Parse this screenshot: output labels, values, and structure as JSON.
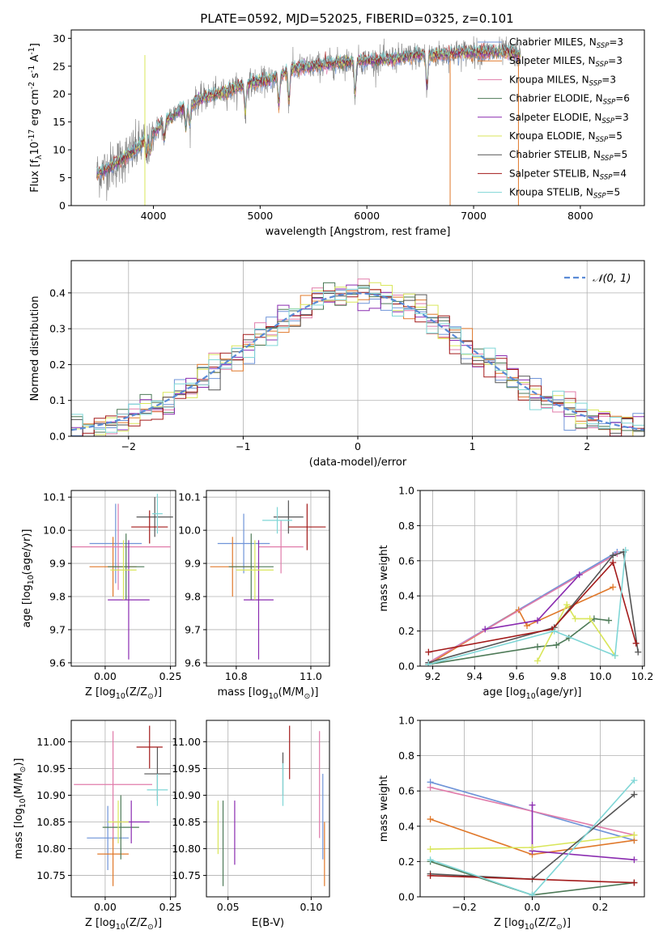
{
  "figure": {
    "title": "PLATE=0592, MJD=52025, FIBERID=0325, z=0.101"
  },
  "colors": {
    "models": [
      "#6f94d8",
      "#e0782a",
      "#e07baa",
      "#4d7a57",
      "#8a2bb0",
      "#d9e65a",
      "#555555",
      "#a31a1a",
      "#7fd6d6"
    ],
    "axes_fg": "#000000",
    "grid": "#b0b0b0",
    "spectrum_data": "#808080",
    "gauss": "#5b8bd6"
  },
  "chart_data": [
    {
      "id": "spectrum",
      "type": "line",
      "xlabel": "wavelength [Angstrom, rest frame]",
      "ylabel": "Flux [f$_\\lambda$10$^{-17}$ erg cm$^{-2}$ s$^{-1}$ A$^{-1}$]",
      "ylabel_parts": [
        "Flux [f",
        "λ",
        "10",
        "−17",
        " erg cm",
        "−2",
        " s",
        "−1",
        " A",
        "−1",
        "]"
      ],
      "xlim": [
        3230,
        8600
      ],
      "ylim": [
        0,
        31.5
      ],
      "xticks": [
        4000,
        5000,
        6000,
        7000,
        8000
      ],
      "yticks": [
        0,
        5,
        10,
        15,
        20,
        25,
        30
      ],
      "continuum": {
        "x": [
          3450,
          3600,
          3800,
          3950,
          4100,
          4300,
          4500,
          4700,
          4900,
          5100,
          5300,
          5500,
          5700,
          5900,
          6100,
          6300,
          6500,
          6700,
          6900,
          7100,
          7300,
          7450
        ],
        "y": [
          5.5,
          7.0,
          9.5,
          12.0,
          15.0,
          18.0,
          19.5,
          20.5,
          22.0,
          22.5,
          24.5,
          25.0,
          25.5,
          26.0,
          26.0,
          26.5,
          27.0,
          27.0,
          27.5,
          27.5,
          27.5,
          27.0
        ]
      },
      "legend": [
        {
          "name": "Chabrier MILES",
          "nssp": "3"
        },
        {
          "name": "Salpeter MILES",
          "nssp": "3"
        },
        {
          "name": "Kroupa MILES",
          "nssp": "3"
        },
        {
          "name": "Chabrier ELODIE",
          "nssp": "6"
        },
        {
          "name": "Salpeter ELODIE",
          "nssp": "3"
        },
        {
          "name": "Kroupa ELODIE",
          "nssp": "5"
        },
        {
          "name": "Chabrier STELIB",
          "nssp": "5"
        },
        {
          "name": "Salpeter STELIB",
          "nssp": "4"
        },
        {
          "name": "Kroupa STELIB",
          "nssp": "5"
        }
      ],
      "legend_nssp_label": "N",
      "legend_nssp_sub": "SSP"
    },
    {
      "id": "residuals",
      "type": "histogram",
      "xlabel": "(data-model)/error",
      "ylabel": "Normed distribution",
      "xlim": [
        -2.5,
        2.5
      ],
      "ylim": [
        0,
        0.49
      ],
      "xticks": [
        -2,
        -1,
        0,
        1,
        2
      ],
      "yticks": [
        0.0,
        0.1,
        0.2,
        0.3,
        0.4
      ],
      "bin_width": 0.1,
      "legend": "𝒩(0, 1)"
    },
    {
      "id": "age-vs-Z",
      "type": "errorbar",
      "xlabel": "Z [log$_{10}$(Z/Z$_\\odot$)]",
      "ylabel": "age  [log$_{10}$(age/yr)]",
      "xlim": [
        -0.13,
        0.27
      ],
      "ylim": [
        9.59,
        10.12
      ],
      "xticks": [
        0.0,
        0.25
      ],
      "yticks": [
        9.6,
        9.7,
        9.8,
        9.9,
        10.0,
        10.1
      ],
      "points": [
        {
          "x": 0.04,
          "y": 9.96,
          "xerr": 0.1,
          "yerr": 0.12
        },
        {
          "x": 0.03,
          "y": 9.89,
          "xerr": 0.09,
          "yerr": 0.09
        },
        {
          "x": 0.05,
          "y": 9.95,
          "xerr": 0.2,
          "yerr": 0.13
        },
        {
          "x": 0.08,
          "y": 9.89,
          "xerr": 0.07,
          "yerr": 0.1
        },
        {
          "x": 0.09,
          "y": 9.79,
          "xerr": 0.08,
          "yerr": 0.18
        },
        {
          "x": 0.07,
          "y": 9.88,
          "xerr": 0.05,
          "yerr": 0.09
        },
        {
          "x": 0.19,
          "y": 10.04,
          "xerr": 0.07,
          "yerr": 0.06
        },
        {
          "x": 0.17,
          "y": 10.01,
          "xerr": 0.07,
          "yerr": 0.05
        },
        {
          "x": 0.2,
          "y": 10.05,
          "xerr": 0.02,
          "yerr": 0.06
        }
      ]
    },
    {
      "id": "age-vs-mass",
      "type": "errorbar",
      "xlabel": "mass [log$_{10}$(M/M$_\\odot$)]",
      "ylabel": "",
      "xlim": [
        10.72,
        11.05
      ],
      "ylim": [
        9.59,
        10.12
      ],
      "xticks": [
        10.8,
        11.0
      ],
      "yticks": [
        9.6,
        9.7,
        9.8,
        9.9,
        10.0,
        10.1
      ],
      "points": [
        {
          "x": 10.82,
          "y": 9.96,
          "xerr": 0.07,
          "yerr": 0.09
        },
        {
          "x": 10.79,
          "y": 9.89,
          "xerr": 0.06,
          "yerr": 0.09
        },
        {
          "x": 10.92,
          "y": 9.95,
          "xerr": 0.06,
          "yerr": 0.08
        },
        {
          "x": 10.84,
          "y": 9.89,
          "xerr": 0.06,
          "yerr": 0.1
        },
        {
          "x": 10.86,
          "y": 9.79,
          "xerr": 0.04,
          "yerr": 0.18
        },
        {
          "x": 10.85,
          "y": 9.88,
          "xerr": 0.05,
          "yerr": 0.09
        },
        {
          "x": 10.94,
          "y": 10.04,
          "xerr": 0.04,
          "yerr": 0.05
        },
        {
          "x": 10.99,
          "y": 10.01,
          "xerr": 0.05,
          "yerr": 0.07
        },
        {
          "x": 10.91,
          "y": 10.03,
          "xerr": 0.04,
          "yerr": 0.04
        }
      ]
    },
    {
      "id": "massweight-vs-age",
      "type": "line",
      "xlabel": "age  [log$_{10}$(age/yr)]",
      "ylabel": "mass weight",
      "xlim": [
        9.14,
        10.21
      ],
      "ylim": [
        0,
        1.0
      ],
      "xticks": [
        9.2,
        9.4,
        9.6,
        9.8,
        10.0,
        10.2
      ],
      "yticks": [
        0.0,
        0.2,
        0.4,
        0.6,
        0.8,
        1.0
      ],
      "series": [
        {
          "x": [
            9.18,
            10.08
          ],
          "y": [
            0.02,
            0.65
          ]
        },
        {
          "x": [
            9.18,
            9.61,
            9.65,
            10.06
          ],
          "y": [
            0.01,
            0.32,
            0.23,
            0.45
          ]
        },
        {
          "x": [
            9.18,
            10.08
          ],
          "y": [
            0.02,
            0.64
          ]
        },
        {
          "x": [
            9.18,
            9.7,
            9.79,
            9.85,
            9.97,
            10.04
          ],
          "y": [
            0.01,
            0.11,
            0.12,
            0.16,
            0.27,
            0.26
          ]
        },
        {
          "x": [
            9.45,
            9.7,
            9.9
          ],
          "y": [
            0.21,
            0.26,
            0.52
          ]
        },
        {
          "x": [
            9.7,
            9.84,
            9.88,
            9.95,
            10.07
          ],
          "y": [
            0.03,
            0.35,
            0.27,
            0.27,
            0.06
          ]
        },
        {
          "x": [
            9.18,
            9.78,
            10.06,
            10.11,
            10.18
          ],
          "y": [
            0.02,
            0.22,
            0.63,
            0.65,
            0.08
          ]
        },
        {
          "x": [
            9.18,
            9.77,
            10.06,
            10.17
          ],
          "y": [
            0.08,
            0.21,
            0.59,
            0.13
          ]
        },
        {
          "x": [
            9.18,
            9.78,
            10.07,
            10.12
          ],
          "y": [
            0.01,
            0.2,
            0.06,
            0.66
          ]
        }
      ]
    },
    {
      "id": "mass-vs-Z",
      "type": "errorbar",
      "xlabel": "Z [log$_{10}$(Z/Z$_\\odot$)]",
      "ylabel": "mass [log$_{10}$(M/M$_\\odot$)]",
      "xlim": [
        -0.13,
        0.27
      ],
      "ylim": [
        10.71,
        11.04
      ],
      "xticks": [
        0.0,
        0.25
      ],
      "yticks": [
        10.75,
        10.8,
        10.85,
        10.9,
        10.95,
        11.0
      ],
      "points": [
        {
          "x": 0.01,
          "y": 10.82,
          "xerr": 0.08,
          "yerr": 0.06
        },
        {
          "x": 0.03,
          "y": 10.79,
          "xerr": 0.06,
          "yerr": 0.06
        },
        {
          "x": 0.03,
          "y": 10.92,
          "xerr": 0.15,
          "yerr": 0.1
        },
        {
          "x": 0.06,
          "y": 10.84,
          "xerr": 0.07,
          "yerr": 0.06
        },
        {
          "x": 0.1,
          "y": 10.85,
          "xerr": 0.07,
          "yerr": 0.04
        },
        {
          "x": 0.05,
          "y": 10.85,
          "xerr": 0.04,
          "yerr": 0.04
        },
        {
          "x": 0.2,
          "y": 10.94,
          "xerr": 0.05,
          "yerr": 0.05
        },
        {
          "x": 0.17,
          "y": 10.99,
          "xerr": 0.05,
          "yerr": 0.04
        },
        {
          "x": 0.2,
          "y": 10.91,
          "xerr": 0.04,
          "yerr": 0.03
        }
      ]
    },
    {
      "id": "mass-vs-EBV",
      "type": "errorbar",
      "xlabel": "E(B-V)",
      "ylabel": "",
      "xlim": [
        0.037,
        0.111
      ],
      "ylim": [
        10.71,
        11.04
      ],
      "xticks": [
        0.05,
        0.1
      ],
      "yticks": [
        10.75,
        10.8,
        10.85,
        10.9,
        10.95,
        11.0
      ],
      "points": [
        {
          "x": 0.107,
          "y": 10.86,
          "xerr": 0.0,
          "yerr": 0.08
        },
        {
          "x": 0.108,
          "y": 10.79,
          "xerr": 0.0,
          "yerr": 0.06
        },
        {
          "x": 0.105,
          "y": 10.92,
          "xerr": 0.0,
          "yerr": 0.1
        },
        {
          "x": 0.047,
          "y": 10.81,
          "xerr": 0.0,
          "yerr": 0.08
        },
        {
          "x": 0.054,
          "y": 10.83,
          "xerr": 0.0,
          "yerr": 0.06
        },
        {
          "x": 0.044,
          "y": 10.84,
          "xerr": 0.0,
          "yerr": 0.05
        },
        {
          "x": 0.083,
          "y": 10.94,
          "xerr": 0.0,
          "yerr": 0.04
        },
        {
          "x": 0.087,
          "y": 10.98,
          "xerr": 0.0,
          "yerr": 0.05
        },
        {
          "x": 0.083,
          "y": 10.92,
          "xerr": 0.0,
          "yerr": 0.04
        }
      ]
    },
    {
      "id": "massweight-vs-Z",
      "type": "line",
      "xlabel": "Z [log$_{10}$(Z/Z$_\\odot$)]",
      "ylabel": "mass weight",
      "xlim": [
        -0.33,
        0.33
      ],
      "ylim": [
        0,
        1.0
      ],
      "xticks": [
        -0.2,
        0.0,
        0.2
      ],
      "yticks": [
        0.0,
        0.2,
        0.4,
        0.6,
        0.8,
        1.0
      ],
      "series": [
        {
          "x": [
            -0.3,
            0.3
          ],
          "y": [
            0.65,
            0.32
          ]
        },
        {
          "x": [
            -0.3,
            0.0,
            0.3
          ],
          "y": [
            0.44,
            0.24,
            0.32
          ]
        },
        {
          "x": [
            -0.3,
            0.3
          ],
          "y": [
            0.62,
            0.35
          ]
        },
        {
          "x": [
            -0.3,
            0.0,
            0.3
          ],
          "y": [
            0.2,
            0.01,
            0.08
          ]
        },
        {
          "x": [
            0.0,
            0.0,
            0.3
          ],
          "y": [
            0.52,
            0.26,
            0.21
          ]
        },
        {
          "x": [
            -0.3,
            0.0,
            0.3
          ],
          "y": [
            0.27,
            0.28,
            0.35
          ]
        },
        {
          "x": [
            -0.3,
            0.0,
            0.3
          ],
          "y": [
            0.13,
            0.1,
            0.58
          ]
        },
        {
          "x": [
            -0.3,
            0.3
          ],
          "y": [
            0.12,
            0.08
          ]
        },
        {
          "x": [
            -0.3,
            0.0,
            0.3
          ],
          "y": [
            0.21,
            0.01,
            0.66
          ]
        }
      ]
    }
  ]
}
